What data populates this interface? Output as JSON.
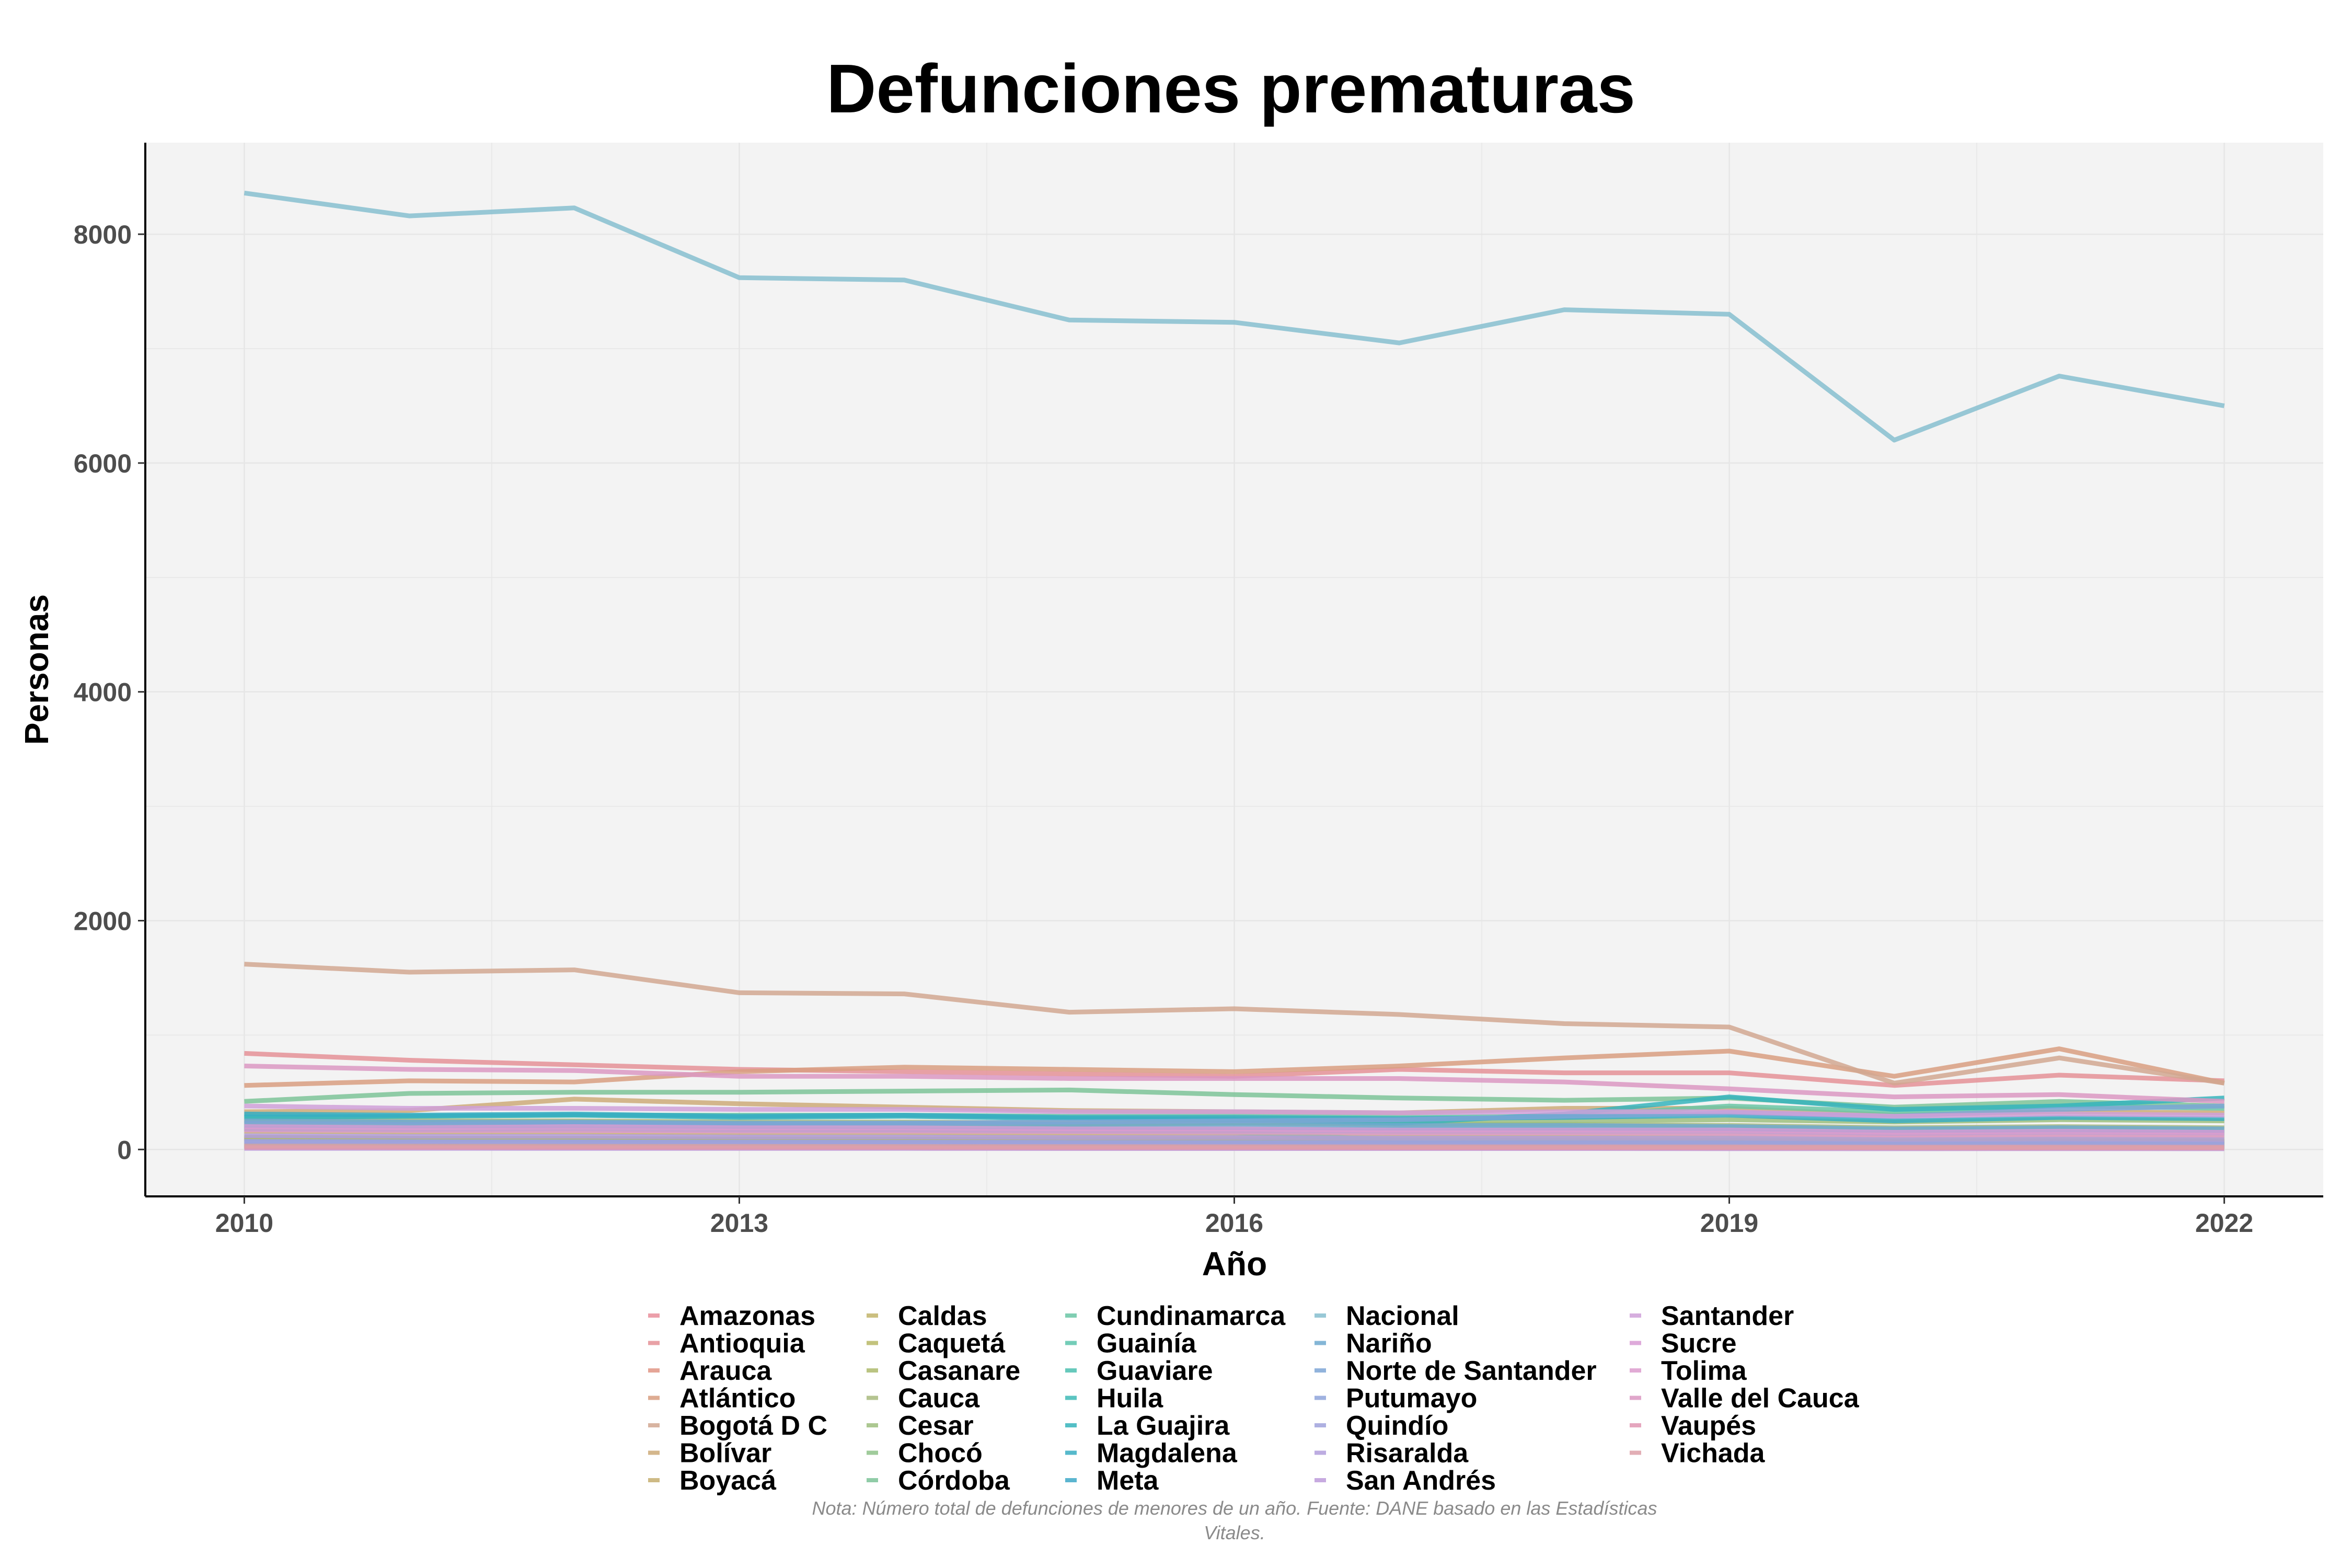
{
  "chart_data": {
    "type": "line",
    "title": "Defunciones prematuras",
    "xlabel": "Año",
    "ylabel": "Personas",
    "x": [
      2010,
      2011,
      2012,
      2013,
      2014,
      2015,
      2016,
      2017,
      2018,
      2019,
      2020,
      2021,
      2022
    ],
    "x_ticks": [
      2010,
      2013,
      2016,
      2019,
      2022
    ],
    "y_ticks": [
      0,
      2000,
      4000,
      6000,
      8000
    ],
    "xlim": [
      2009.4,
      2022.6
    ],
    "ylim": [
      -410,
      8800
    ],
    "grid": true,
    "legend_position": "bottom",
    "series": [
      {
        "name": "Amazonas",
        "color": "#E98E9B",
        "values": [
          40,
          38,
          36,
          35,
          34,
          33,
          32,
          31,
          30,
          29,
          26,
          28,
          27
        ]
      },
      {
        "name": "Antioquia",
        "color": "#E49196",
        "values": [
          840,
          780,
          740,
          700,
          680,
          660,
          640,
          700,
          670,
          670,
          560,
          650,
          600
        ]
      },
      {
        "name": "Arauca",
        "color": "#E09585",
        "values": [
          90,
          85,
          82,
          80,
          78,
          76,
          74,
          72,
          70,
          68,
          60,
          64,
          62
        ]
      },
      {
        "name": "Atlántico",
        "color": "#D89E80",
        "values": [
          560,
          600,
          590,
          680,
          720,
          700,
          680,
          730,
          800,
          860,
          640,
          880,
          580
        ]
      },
      {
        "name": "Bogotá D C",
        "color": "#D1A790",
        "values": [
          1620,
          1550,
          1570,
          1370,
          1360,
          1200,
          1230,
          1180,
          1100,
          1070,
          580,
          800,
          580
        ]
      },
      {
        "name": "Bolívar",
        "color": "#CCAA78",
        "values": [
          330,
          340,
          440,
          400,
          370,
          340,
          330,
          320,
          360,
          360,
          300,
          330,
          320
        ]
      },
      {
        "name": "Boyacá",
        "color": "#C6AE70",
        "values": [
          160,
          150,
          150,
          140,
          140,
          130,
          130,
          125,
          125,
          120,
          105,
          110,
          105
        ]
      },
      {
        "name": "Caldas",
        "color": "#C2B46A",
        "values": [
          110,
          100,
          100,
          95,
          95,
          90,
          90,
          85,
          85,
          80,
          70,
          75,
          70
        ]
      },
      {
        "name": "Caquetá",
        "color": "#B8B866",
        "values": [
          90,
          85,
          84,
          82,
          80,
          78,
          76,
          74,
          72,
          70,
          62,
          66,
          64
        ]
      },
      {
        "name": "Casanare",
        "color": "#AEBA6C",
        "values": [
          100,
          95,
          92,
          90,
          88,
          86,
          84,
          82,
          80,
          78,
          70,
          74,
          72
        ]
      },
      {
        "name": "Cauca",
        "color": "#A8BA7E",
        "values": [
          260,
          250,
          250,
          240,
          240,
          230,
          230,
          220,
          220,
          210,
          190,
          200,
          190
        ]
      },
      {
        "name": "Cesar",
        "color": "#9DBE7E",
        "values": [
          230,
          220,
          230,
          220,
          230,
          220,
          230,
          240,
          250,
          260,
          240,
          260,
          250
        ]
      },
      {
        "name": "Chocó",
        "color": "#8FC28A",
        "values": [
          200,
          190,
          210,
          180,
          170,
          160,
          150,
          80,
          70,
          60,
          50,
          55,
          50
        ]
      },
      {
        "name": "Córdoba",
        "color": "#7DC398",
        "values": [
          420,
          490,
          500,
          500,
          510,
          520,
          480,
          450,
          430,
          450,
          370,
          420,
          380
        ]
      },
      {
        "name": "Cundinamarca",
        "color": "#6AC5A4",
        "values": [
          290,
          290,
          300,
          300,
          300,
          290,
          290,
          280,
          290,
          380,
          330,
          380,
          360
        ]
      },
      {
        "name": "Guainía",
        "color": "#5CC4AC",
        "values": [
          20,
          19,
          18,
          18,
          17,
          17,
          16,
          16,
          15,
          15,
          13,
          14,
          13
        ]
      },
      {
        "name": "Guaviare",
        "color": "#4CC0B0",
        "values": [
          30,
          28,
          27,
          26,
          25,
          24,
          23,
          22,
          22,
          21,
          19,
          20,
          19
        ]
      },
      {
        "name": "Huila",
        "color": "#3EBAB6",
        "values": [
          200,
          190,
          200,
          190,
          190,
          180,
          180,
          175,
          175,
          170,
          150,
          160,
          150
        ]
      },
      {
        "name": "La Guajira",
        "color": "#36B4BC",
        "values": [
          280,
          290,
          300,
          280,
          290,
          270,
          260,
          230,
          310,
          460,
          350,
          380,
          450
        ]
      },
      {
        "name": "Magdalena",
        "color": "#38ADC2",
        "values": [
          310,
          300,
          310,
          290,
          300,
          280,
          280,
          270,
          280,
          300,
          250,
          280,
          270
        ]
      },
      {
        "name": "Meta",
        "color": "#3EA8C8",
        "values": [
          180,
          175,
          180,
          170,
          170,
          165,
          165,
          160,
          160,
          160,
          140,
          150,
          145
        ]
      },
      {
        "name": "Nacional",
        "color": "#86BECF",
        "values": [
          8360,
          8160,
          8230,
          7620,
          7600,
          7250,
          7230,
          7050,
          7340,
          7300,
          6200,
          6760,
          6500
        ]
      },
      {
        "name": "Nariño",
        "color": "#6FA9CF",
        "values": [
          250,
          240,
          240,
          230,
          230,
          220,
          220,
          210,
          210,
          200,
          180,
          190,
          180
        ]
      },
      {
        "name": "Norte de Santander",
        "color": "#7EA6D6",
        "values": [
          230,
          220,
          230,
          220,
          230,
          240,
          250,
          260,
          290,
          320,
          290,
          350,
          380
        ]
      },
      {
        "name": "Putumayo",
        "color": "#8FA4DB",
        "values": [
          70,
          68,
          66,
          64,
          62,
          60,
          58,
          56,
          55,
          54,
          48,
          50,
          48
        ]
      },
      {
        "name": "Quindío",
        "color": "#A0A2DC",
        "values": [
          70,
          68,
          67,
          65,
          64,
          62,
          61,
          60,
          59,
          58,
          52,
          55,
          53
        ]
      },
      {
        "name": "Risaralda",
        "color": "#B19EDC",
        "values": [
          120,
          115,
          115,
          110,
          110,
          105,
          105,
          100,
          100,
          98,
          88,
          92,
          88
        ]
      },
      {
        "name": "San Andrés",
        "color": "#BD9BDA",
        "values": [
          10,
          10,
          9,
          9,
          9,
          8,
          8,
          8,
          8,
          7,
          6,
          7,
          6
        ]
      },
      {
        "name": "Santander",
        "color": "#CFA0D8",
        "values": [
          380,
          360,
          360,
          350,
          350,
          330,
          330,
          320,
          330,
          330,
          290,
          310,
          300
        ]
      },
      {
        "name": "Sucre",
        "color": "#D89BD4",
        "values": [
          200,
          190,
          200,
          190,
          190,
          180,
          180,
          170,
          170,
          170,
          150,
          160,
          150
        ]
      },
      {
        "name": "Tolima",
        "color": "#DC9CCE",
        "values": [
          170,
          165,
          165,
          160,
          160,
          155,
          150,
          145,
          145,
          140,
          125,
          130,
          125
        ]
      },
      {
        "name": "Valle del Cauca",
        "color": "#DA98C2",
        "values": [
          730,
          700,
          690,
          640,
          640,
          620,
          620,
          620,
          590,
          530,
          460,
          480,
          420
        ]
      },
      {
        "name": "Vaupés",
        "color": "#E197B3",
        "values": [
          18,
          17,
          17,
          16,
          16,
          15,
          15,
          14,
          14,
          13,
          12,
          12,
          12
        ]
      },
      {
        "name": "Vichada",
        "color": "#DDA0A8",
        "values": [
          30,
          29,
          28,
          27,
          26,
          25,
          24,
          23,
          23,
          22,
          20,
          21,
          20
        ]
      }
    ],
    "note": "Nota: Número total de defunciones de menores de un año. Fuente: DANE basado en las Estadísticas",
    "note_line2": "Vitales."
  },
  "colors": {
    "panel_background": "#f3f3f3",
    "grid": "#e6e6e6",
    "axis": "#000000"
  }
}
